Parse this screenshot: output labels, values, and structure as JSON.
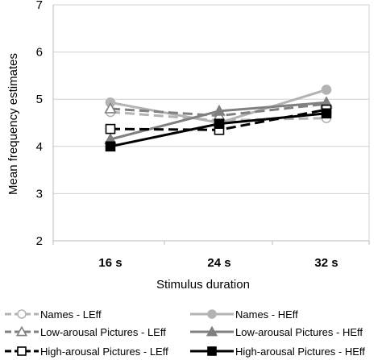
{
  "chart_data": {
    "type": "line",
    "xlabel": "Stimulus duration",
    "ylabel": "Mean frequency estimates",
    "categories": [
      "16 s",
      "24 s",
      "32 s"
    ],
    "ylim": [
      2,
      7
    ],
    "yticks": [
      "2",
      "3",
      "4",
      "5",
      "6",
      "7"
    ],
    "grid": "horizontal",
    "legend_position": "bottom",
    "series": [
      {
        "name": "Names - LEff",
        "values": [
          4.73,
          4.55,
          4.6
        ],
        "color": "#b3b3b3",
        "dash": "long-dash",
        "marker": "circle-open"
      },
      {
        "name": "Names - HEff",
        "values": [
          4.93,
          4.5,
          5.2
        ],
        "color": "#b3b3b3",
        "dash": "solid",
        "marker": "circle-filled"
      },
      {
        "name": "Low-arousal Pictures - LEff",
        "values": [
          4.8,
          4.65,
          4.9
        ],
        "color": "#808080",
        "dash": "long-dash",
        "marker": "triangle-open"
      },
      {
        "name": "Low-arousal Pictures - HEff",
        "values": [
          4.15,
          4.75,
          4.93
        ],
        "color": "#808080",
        "dash": "solid",
        "marker": "triangle-filled"
      },
      {
        "name": "High-arousal Pictures - LEff",
        "values": [
          4.37,
          4.35,
          4.78
        ],
        "color": "#000000",
        "dash": "long-dash",
        "marker": "square-open"
      },
      {
        "name": "High-arousal Pictures - HEff",
        "values": [
          4.0,
          4.48,
          4.7
        ],
        "color": "#000000",
        "dash": "solid",
        "marker": "square-filled"
      }
    ]
  }
}
